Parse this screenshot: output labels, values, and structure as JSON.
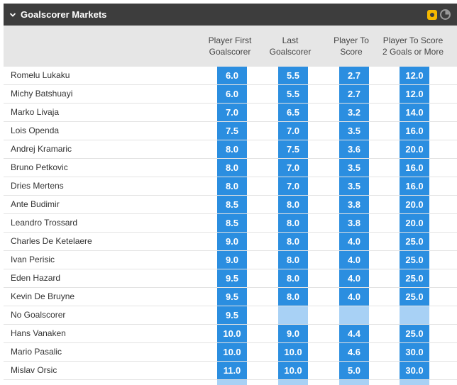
{
  "market": {
    "title": "Goalscorer Markets",
    "icons": [
      "chevron-down-icon",
      "bet-builder-icon",
      "clock-icon"
    ],
    "accent_color": "#2b8ee0",
    "header_color": "#3d3d3d",
    "icon_color": "#f5b800"
  },
  "columns": [
    "Player First Goalscorer",
    "Last Goalscorer",
    "Player To Score",
    "Player To Score 2 Goals or More"
  ],
  "rows": [
    {
      "name": "Romelu Lukaku",
      "odds": [
        "6.0",
        "5.5",
        "2.7",
        "12.0"
      ]
    },
    {
      "name": "Michy Batshuayi",
      "odds": [
        "6.0",
        "5.5",
        "2.7",
        "12.0"
      ]
    },
    {
      "name": "Marko Livaja",
      "odds": [
        "7.0",
        "6.5",
        "3.2",
        "14.0"
      ]
    },
    {
      "name": "Lois Openda",
      "odds": [
        "7.5",
        "7.0",
        "3.5",
        "16.0"
      ]
    },
    {
      "name": "Andrej Kramaric",
      "odds": [
        "8.0",
        "7.5",
        "3.6",
        "20.0"
      ]
    },
    {
      "name": "Bruno Petkovic",
      "odds": [
        "8.0",
        "7.0",
        "3.5",
        "16.0"
      ]
    },
    {
      "name": "Dries Mertens",
      "odds": [
        "8.0",
        "7.0",
        "3.5",
        "16.0"
      ]
    },
    {
      "name": "Ante Budimir",
      "odds": [
        "8.5",
        "8.0",
        "3.8",
        "20.0"
      ]
    },
    {
      "name": "Leandro Trossard",
      "odds": [
        "8.5",
        "8.0",
        "3.8",
        "20.0"
      ]
    },
    {
      "name": "Charles De Ketelaere",
      "odds": [
        "9.0",
        "8.0",
        "4.0",
        "25.0"
      ]
    },
    {
      "name": "Ivan Perisic",
      "odds": [
        "9.0",
        "8.0",
        "4.0",
        "25.0"
      ]
    },
    {
      "name": "Eden Hazard",
      "odds": [
        "9.5",
        "8.0",
        "4.0",
        "25.0"
      ]
    },
    {
      "name": "Kevin De Bruyne",
      "odds": [
        "9.5",
        "8.0",
        "4.0",
        "25.0"
      ]
    },
    {
      "name": "No Goalscorer",
      "odds": [
        "9.5",
        "",
        "",
        ""
      ]
    },
    {
      "name": "Hans Vanaken",
      "odds": [
        "10.0",
        "9.0",
        "4.4",
        "25.0"
      ]
    },
    {
      "name": "Mario Pasalic",
      "odds": [
        "10.0",
        "10.0",
        "4.6",
        "30.0"
      ]
    },
    {
      "name": "Mislav Orsic",
      "odds": [
        "11.0",
        "10.0",
        "5.0",
        "30.0"
      ]
    },
    {
      "name": "",
      "odds": [
        "",
        "",
        "",
        ""
      ]
    }
  ]
}
